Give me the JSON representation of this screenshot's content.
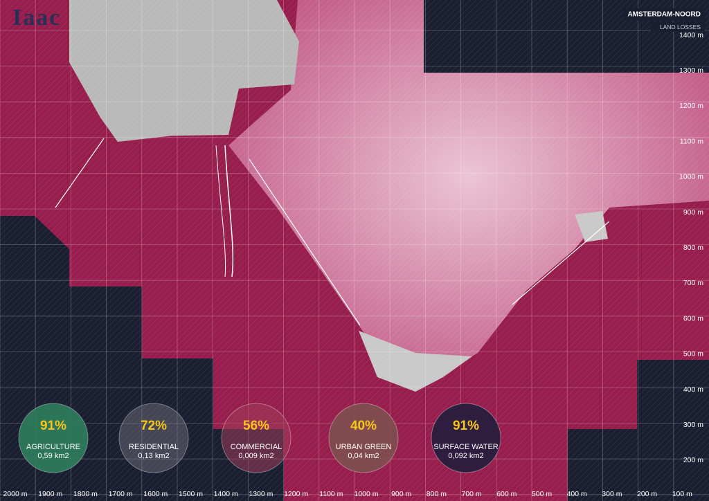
{
  "logo": "Iaac",
  "header": {
    "title": "AMSTERDAM-NOORD",
    "subtitle": "LAND LOSSES"
  },
  "vertical_scale": [
    "1400 m",
    "1300 m",
    "1200 m",
    "1100 m",
    "1000 m",
    "900 m",
    "800 m",
    "700 m",
    "600 m",
    "500 m",
    "400 m",
    "300 m",
    "200 m"
  ],
  "horizontal_scale": [
    "2000 m",
    "1900 m",
    "1800 m",
    "1700 m",
    "1600 m",
    "1500 m",
    "1400 m",
    "1300 m",
    "1200 m",
    "1100 m",
    "1000 m",
    "900 m",
    "800 m",
    "700 m",
    "600 m",
    "500 m",
    "400 m",
    "300 m",
    "200 m",
    "100 m"
  ],
  "stats": [
    {
      "percent": "91%",
      "label": "AGRICULTURE",
      "area": "0,59 km2"
    },
    {
      "percent": "72%",
      "label": "RESIDENTIAL",
      "area": "0,13 km2"
    },
    {
      "percent": "56%",
      "label": "COMMERCIAL",
      "area": "0,009 km2"
    },
    {
      "percent": "40%",
      "label": "URBAN GREEN",
      "area": "0,04 km2"
    },
    {
      "percent": "91%",
      "label": "SURFACE WATER",
      "area": "0,092 km2"
    }
  ]
}
